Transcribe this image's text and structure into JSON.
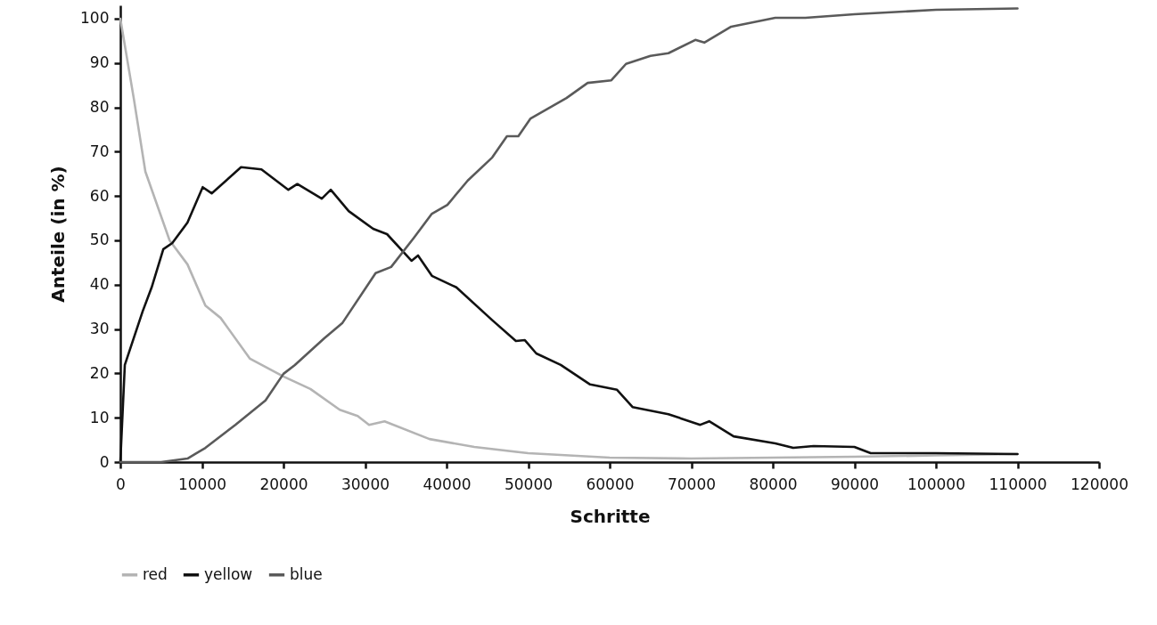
{
  "chart_data": {
    "type": "line",
    "xlabel": "Schritte",
    "ylabel": "Anteile (in %)",
    "xlim": [
      0,
      120000
    ],
    "ylim": [
      0,
      103
    ],
    "xticks": [
      0,
      10000,
      20000,
      30000,
      40000,
      50000,
      60000,
      70000,
      80000,
      90000,
      100000,
      110000,
      120000
    ],
    "yticks": [
      0,
      10,
      20,
      30,
      40,
      50,
      60,
      70,
      80,
      90,
      100
    ],
    "grid": false,
    "legend": "bottom",
    "series": [
      {
        "name": "red",
        "color": "#b4b4b4",
        "x": [
          0,
          1650,
          3070,
          6040,
          8230,
          10430,
          12300,
          15900,
          20000,
          23300,
          26900,
          29100,
          30500,
          32400,
          37900,
          43400,
          50000,
          55000,
          60000,
          70000,
          80000,
          90000,
          100000,
          110000
        ],
        "values": [
          100,
          82,
          65.5,
          50,
          44.6,
          35.3,
          32.5,
          23.3,
          19.3,
          16.5,
          11.8,
          10.4,
          8.4,
          9.2,
          5.2,
          3.4,
          2,
          1.5,
          1,
          0.8,
          1,
          1.2,
          1.5,
          1.8
        ]
      },
      {
        "name": "yellow",
        "color": "#111111",
        "x": [
          0,
          550,
          2740,
          3840,
          5270,
          6370,
          8230,
          10100,
          11200,
          14800,
          17300,
          20600,
          21700,
          24700,
          25800,
          28000,
          31000,
          32700,
          35700,
          36500,
          38200,
          41200,
          45600,
          48500,
          49600,
          51000,
          54000,
          57600,
          60900,
          62800,
          67200,
          71100,
          72200,
          75200,
          80300,
          82500,
          85000,
          90000,
          92000,
          100000,
          110000
        ],
        "values": [
          0,
          21.9,
          34,
          39.4,
          48,
          49.4,
          54,
          62,
          60.6,
          66.5,
          66,
          61.4,
          62.7,
          59.4,
          61.4,
          56.6,
          52.6,
          51.4,
          45.4,
          46.6,
          42,
          39.4,
          32,
          27.3,
          27.5,
          24.5,
          21.9,
          17.5,
          16.3,
          12.4,
          10.8,
          8.4,
          9.2,
          5.8,
          4.2,
          3.2,
          3.6,
          3.4,
          2,
          2,
          1.8
        ]
      },
      {
        "name": "blue",
        "color": "#5a5a5a",
        "x": [
          0,
          5000,
          8230,
          10430,
          14100,
          17800,
          20000,
          21400,
          25000,
          27200,
          31300,
          33200,
          36000,
          38200,
          40100,
          42600,
          45600,
          47400,
          48800,
          50300,
          54700,
          57300,
          60200,
          62000,
          65000,
          67200,
          70500,
          71600,
          74900,
          80300,
          84000,
          90000,
          100000,
          110000
        ],
        "values": [
          0,
          0,
          0.8,
          3.2,
          8.4,
          13.9,
          19.9,
          21.9,
          27.9,
          31.3,
          42.6,
          44,
          50.6,
          56,
          58,
          63.5,
          68.7,
          73.5,
          73.5,
          77.5,
          82.1,
          85.5,
          86.1,
          89.8,
          91.6,
          92.2,
          95.2,
          94.6,
          98.2,
          100.2,
          100.2,
          101,
          102,
          102.3
        ]
      }
    ]
  }
}
